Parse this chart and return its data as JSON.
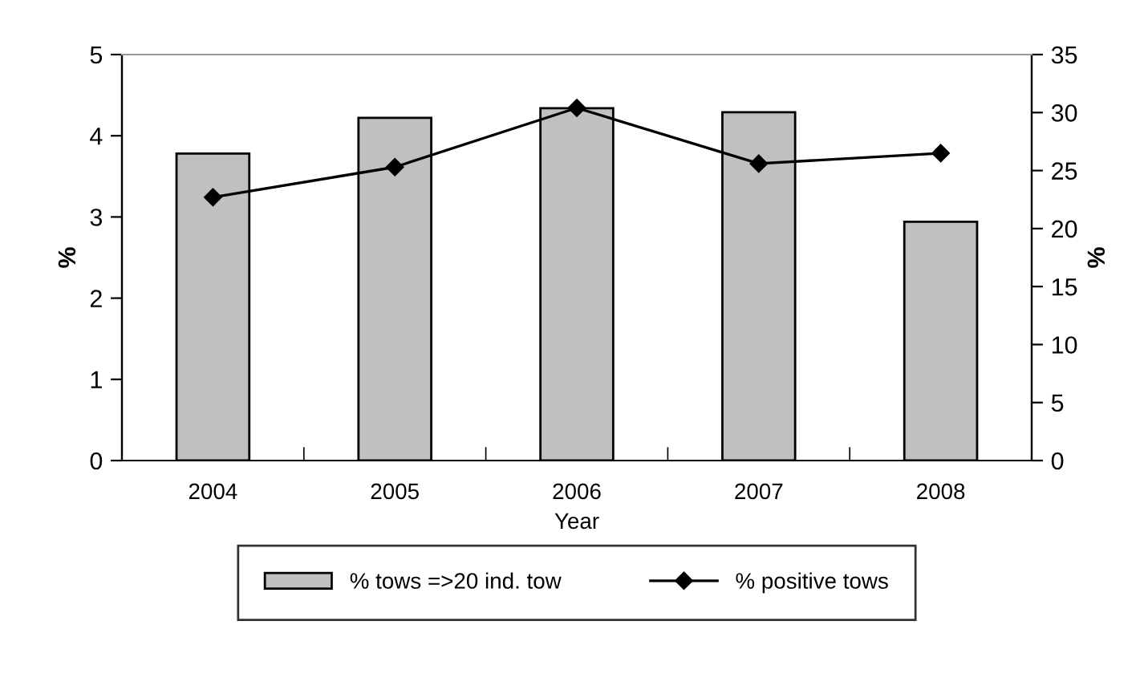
{
  "chart_data": {
    "type": "bar",
    "xlabel": "Year",
    "ylabel": "%",
    "y2label": "%",
    "categories": [
      "2004",
      "2005",
      "2006",
      "2007",
      "2008"
    ],
    "series": [
      {
        "name": "% tows =>20 ind. tow",
        "color": "#c0c0c0",
        "values": [
          3.78,
          4.22,
          4.34,
          4.29,
          2.94
        ]
      },
      {
        "name": "% positive tows",
        "type": "line",
        "axis": "y2",
        "color": "#000000",
        "marker": "diamond",
        "values": [
          22.7,
          25.3,
          30.4,
          25.6,
          26.5
        ]
      }
    ],
    "ylim": [
      0,
      5
    ],
    "yticks": [
      0,
      1,
      2,
      3,
      4,
      5
    ],
    "y2lim": [
      0,
      35
    ],
    "y2ticks": [
      0,
      5,
      10,
      15,
      20,
      25,
      30,
      35
    ],
    "grid": false,
    "legend": "bottom"
  }
}
